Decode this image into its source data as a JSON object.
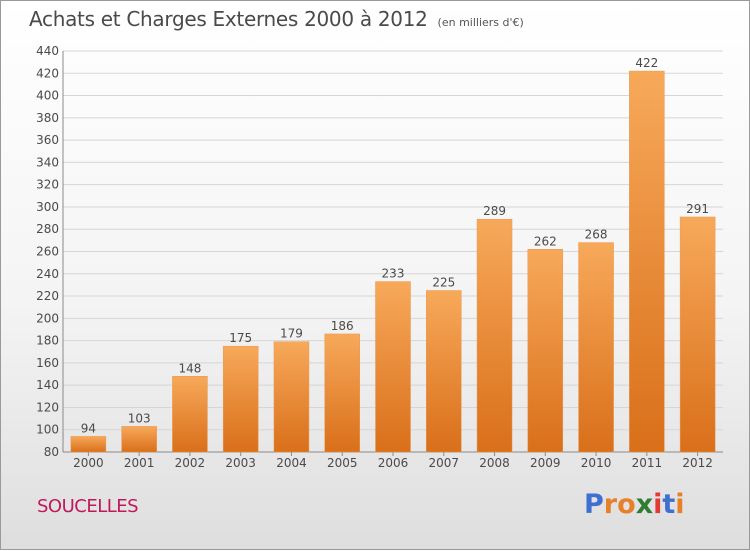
{
  "header": {
    "title": "Achats et Charges Externes 2000 à 2012",
    "subtitle": "(en milliers d'€)"
  },
  "commune": "SOUCELLES",
  "brand": {
    "letters": [
      "P",
      "r",
      "o",
      "x",
      "i",
      "t",
      "i"
    ]
  },
  "colors": {
    "bar_top": "#f7a95a",
    "bar_bottom": "#d96f1a",
    "commune": "#c2185b",
    "text": "#4a4a4a"
  },
  "chart_data": {
    "type": "bar",
    "categories": [
      "2000",
      "2001",
      "2002",
      "2003",
      "2004",
      "2005",
      "2006",
      "2007",
      "2008",
      "2009",
      "2010",
      "2011",
      "2012"
    ],
    "values": [
      94,
      103,
      148,
      175,
      179,
      186,
      233,
      225,
      289,
      262,
      268,
      422,
      291
    ],
    "ylim": [
      80,
      440
    ],
    "yticks": [
      80,
      100,
      120,
      140,
      160,
      180,
      200,
      220,
      240,
      260,
      280,
      300,
      320,
      340,
      360,
      380,
      400,
      420,
      440
    ],
    "grid": true,
    "data_labels": true
  }
}
